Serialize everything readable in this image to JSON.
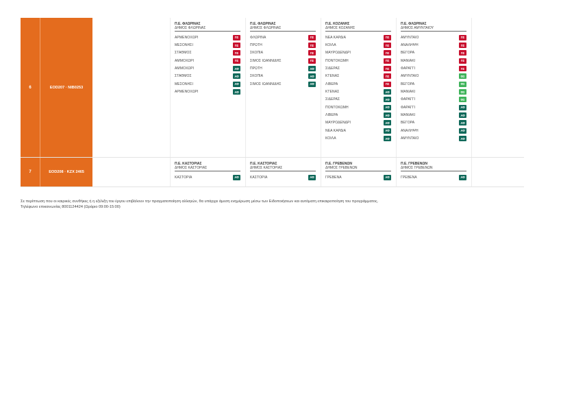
{
  "rows": [
    {
      "num": "6",
      "vehicle": "EOD207 · NIB0253",
      "zones": [
        {
          "area": "Π.Ε. ΦΛΩΡΙΝΑΣ",
          "municipality": "ΔΗΜΟΣ ΦΛΩΡΙΝΑΣ",
          "stops": [
            {
              "name": "ΑΡΜΕΝΟΧΩΡΙ",
              "badge": "ΠΣ",
              "kind": "pe"
            },
            {
              "name": "ΜΕΣΟΝΗΣΙ",
              "badge": "ΠΣ",
              "kind": "pe"
            },
            {
              "name": "ΣΤΑΘΜΟΣ",
              "badge": "ΠΣ",
              "kind": "pe"
            },
            {
              "name": "ΑΜΜΟΧΩΡΙ",
              "badge": "ΠΣ",
              "kind": "pe"
            },
            {
              "name": "ΑΜΜΟΧΩΡΙ",
              "badge": "ΑΦ",
              "kind": "af"
            },
            {
              "name": "ΣΤΑΘΜΟΣ",
              "badge": "ΑΦ",
              "kind": "af"
            },
            {
              "name": "ΜΕΣΟΝΗΣΙ",
              "badge": "ΑΦ",
              "kind": "af"
            },
            {
              "name": "ΑΡΜΕΝΟΧΩΡΙ",
              "badge": "ΑΦ",
              "kind": "af"
            }
          ]
        },
        {
          "area": "Π.Ε. ΦΛΩΡΙΝΑΣ",
          "municipality": "ΔΗΜΟΣ ΦΛΩΡΙΝΑΣ",
          "stops": [
            {
              "name": "ΦΛΩΡΙΝΑ",
              "badge": "ΠΣ",
              "kind": "pe"
            },
            {
              "name": "ΠΡΩΤΗ",
              "badge": "ΠΣ",
              "kind": "pe"
            },
            {
              "name": "ΣΚΟΠΙΑ",
              "badge": "ΠΣ",
              "kind": "pe"
            },
            {
              "name": "ΣΙΜΟΣ ΙΩΑΝΝΙΔΗΣ",
              "badge": "ΠΣ",
              "kind": "pe"
            },
            {
              "name": "ΠΡΩΤΗ",
              "badge": "ΑΦ",
              "kind": "af"
            },
            {
              "name": "ΣΚΟΠΙΑ",
              "badge": "ΑΦ",
              "kind": "af"
            },
            {
              "name": "ΣΙΜΟΣ ΙΩΑΝΝΙΔΗΣ",
              "badge": "ΑΦ",
              "kind": "af"
            }
          ]
        },
        {
          "area": "Π.Ε. ΚΟΖΑΝΗΣ",
          "municipality": "ΔΗΜΟΣ ΚΟΖΑΝΗΣ",
          "stops": [
            {
              "name": "ΝΕΑ ΚΑΡΔΙΑ",
              "badge": "ΠΣ",
              "kind": "pe"
            },
            {
              "name": "ΚΟΙΛΑ",
              "badge": "ΠΣ",
              "kind": "pe"
            },
            {
              "name": "ΜΑΥΡΟΔΕΝΔΡΙ",
              "badge": "ΠΣ",
              "kind": "pe"
            },
            {
              "name": "ΠΟΝΤΟΚΩΜΗ",
              "badge": "ΠΣ",
              "kind": "pe"
            },
            {
              "name": "ΣΙΔΕΡΑΣ",
              "badge": "ΠΣ",
              "kind": "pe"
            },
            {
              "name": "ΚΤΕΝΑΣ",
              "badge": "ΠΣ",
              "kind": "pe"
            },
            {
              "name": "ΛΙΒΕΡΑ",
              "badge": "ΠΣ",
              "kind": "pe"
            },
            {
              "name": "ΚΤΕΝΑΣ",
              "badge": "ΑΦ",
              "kind": "af"
            },
            {
              "name": "ΣΙΔΕΡΑΣ",
              "badge": "ΑΦ",
              "kind": "af"
            },
            {
              "name": "ΠΟΝΤΟΚΩΜΗ",
              "badge": "ΑΦ",
              "kind": "af"
            },
            {
              "name": "ΛΙΒΕΡΑ",
              "badge": "ΑΦ",
              "kind": "af"
            },
            {
              "name": "ΜΑΥΡΟΔΕΝΔΡΙ",
              "badge": "ΑΦ",
              "kind": "af"
            },
            {
              "name": "ΝΕΑ ΚΑΡΔΙΑ",
              "badge": "ΑΦ",
              "kind": "af"
            },
            {
              "name": "ΚΟΙΛΑ",
              "badge": "ΑΦ",
              "kind": "af"
            }
          ]
        },
        {
          "area": "Π.Ε. ΦΛΩΡΙΝΑΣ",
          "municipality": "ΔΗΜΟΣ ΑΜΥΝΤΑΙΟΥ",
          "stops": [
            {
              "name": "ΑΜΥΝΤΑΙΟ",
              "badge": "ΠΣ",
              "kind": "pe"
            },
            {
              "name": "ΑΝΑΛΗΨΗ",
              "badge": "ΠΣ",
              "kind": "pe"
            },
            {
              "name": "ΒΕΓΟΡΑ",
              "badge": "ΠΣ",
              "kind": "pe"
            },
            {
              "name": "ΜΑΝΙΑΚΙ",
              "badge": "ΠΣ",
              "kind": "pe"
            },
            {
              "name": "ΦΑΡΑΓΓΙ",
              "badge": "ΠΣ",
              "kind": "pe"
            },
            {
              "name": "ΑΜΥΝΤΑΙΟ",
              "badge": "ΦΣ",
              "kind": "af2"
            },
            {
              "name": "ΒΕΓΟΡΑ",
              "badge": "ΦΣ",
              "kind": "af2"
            },
            {
              "name": "ΜΑΝΙΑΚΙ",
              "badge": "ΦΣ",
              "kind": "af2"
            },
            {
              "name": "ΦΑΡΑΓΓΙ",
              "badge": "ΦΣ",
              "kind": "af2"
            },
            {
              "name": "ΦΑΡΑΓΓΙ",
              "badge": "ΑΦ",
              "kind": "af"
            },
            {
              "name": "ΜΑΝΙΑΚΙ",
              "badge": "ΑΦ",
              "kind": "af"
            },
            {
              "name": "ΒΕΓΟΡΑ",
              "badge": "ΑΦ",
              "kind": "af"
            },
            {
              "name": "ΑΝΑΛΗΨΗ",
              "badge": "ΑΦ",
              "kind": "af"
            },
            {
              "name": "ΑΜΥΝΤΑΙΟ",
              "badge": "ΑΦ",
              "kind": "af"
            }
          ]
        }
      ]
    },
    {
      "num": "7",
      "vehicle": "EOD208 · KZX 2465",
      "zones": [
        {
          "area": "Π.Ε. ΚΑΣΤΟΡΙΑΣ",
          "municipality": "ΔΗΜΟΣ ΚΑΣΤΟΡΙΑΣ",
          "stops": [
            {
              "name": "ΚΑΣΤΟΡΙΑ",
              "badge": "ΑΦ",
              "kind": "af"
            }
          ]
        },
        {
          "area": "Π.Ε. ΚΑΣΤΟΡΙΑΣ",
          "municipality": "ΔΗΜΟΣ ΚΑΣΤΟΡΙΑΣ",
          "stops": [
            {
              "name": "ΚΑΣΤΟΡΙΑ",
              "badge": "ΑΦ",
              "kind": "af"
            }
          ]
        },
        {
          "area": "Π.Ε. ΓΡΕΒΕΝΩΝ",
          "municipality": "ΔΗΜΟΣ ΓΡΕΒΕΝΩΝ",
          "stops": [
            {
              "name": "ΓΡΕΒΕΝΑ",
              "badge": "ΑΦ",
              "kind": "af"
            }
          ]
        },
        {
          "area": "Π.Ε. ΓΡΕΒΕΝΩΝ",
          "municipality": "ΔΗΜΟΣ ΓΡΕΒΕΝΩΝ",
          "stops": [
            {
              "name": "ΓΡΕΒΕΝΑ",
              "badge": "ΑΦ",
              "kind": "af"
            }
          ]
        }
      ]
    }
  ],
  "note": {
    "line1": "Σε περίπτωση που οι καιρικές συνθήκες ή η εξέλιξη του έργου επιβάλουν την πραγματοποίηση αλλαγών, θα υπάρχει άμεση ενημέρωση μέσω των Ειδοποιήσεων και αυτόματη επικαιροποίηση του προγράμματος.",
    "line2": "Τηλέφωνο επικοινωνίας 8001124424 (Ωράριο 09:00-15:00)"
  },
  "colors": {
    "accent": "#e46c1e",
    "badge_pe": "#c8102e",
    "badge_af": "#10695a",
    "badge_af_light": "#3fb35a"
  }
}
